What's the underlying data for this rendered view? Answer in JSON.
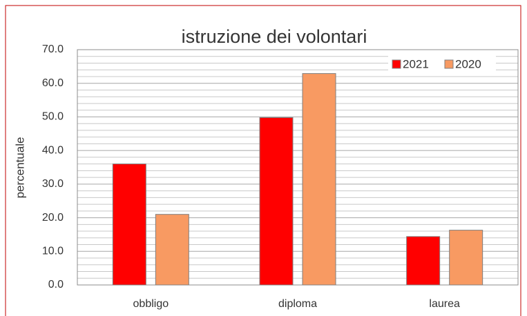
{
  "chart_data": {
    "type": "bar",
    "title": "istruzione dei volontari",
    "y_label": "percentuale",
    "categories": [
      "obbligo",
      "diploma",
      "laurea"
    ],
    "series": [
      {
        "name": "2021",
        "color": "#ff0000",
        "values": [
          36.0,
          49.8,
          14.4
        ]
      },
      {
        "name": "2020",
        "color": "#f89a62",
        "values": [
          21.0,
          62.9,
          16.3
        ]
      }
    ],
    "ylim": [
      0,
      70
    ],
    "yticks": [
      {
        "value": 0,
        "label": "0.0"
      },
      {
        "value": 10,
        "label": "10.0"
      },
      {
        "value": 20,
        "label": "20.0"
      },
      {
        "value": 30,
        "label": "30.0"
      },
      {
        "value": 40,
        "label": "40.0"
      },
      {
        "value": 50,
        "label": "50.0"
      },
      {
        "value": 60,
        "label": "60.0"
      },
      {
        "value": 70,
        "label": "70.0"
      }
    ],
    "yminorticks": [
      2,
      4,
      6,
      8,
      12,
      14,
      16,
      18,
      22,
      24,
      26,
      28,
      32,
      34,
      36,
      38,
      42,
      44,
      46,
      48,
      52,
      54,
      56,
      58,
      62,
      64,
      66,
      68
    ],
    "grid": true,
    "legend": "upper right"
  }
}
